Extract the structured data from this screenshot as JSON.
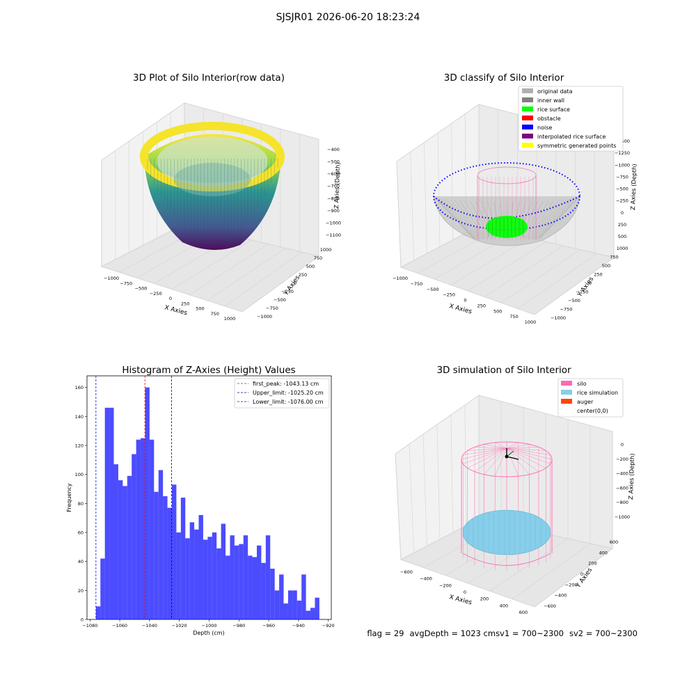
{
  "figure": {
    "suptitle": "SJSJR01 2026-06-20 18:23:24",
    "status": {
      "flag": "flag = 29",
      "avg_depth": "avgDepth = 1023 cm",
      "sv1": "sv1 = 700~2300",
      "sv2": "sv2 = 700~2300"
    }
  },
  "chart_data": [
    {
      "type": "scatter3d",
      "title": "3D Plot of Silo Interior(row data)",
      "xlabel": "X Axies",
      "ylabel": "Y Axies",
      "zlabel": "Z Axies (Depth)",
      "x_ticks": [
        "−1000",
        "−750",
        "−500",
        "−250",
        "0",
        "250",
        "500",
        "750",
        "1000"
      ],
      "y_ticks": [
        "−1000",
        "−750",
        "−500",
        "−250",
        "0",
        "250",
        "500",
        "750",
        "1000"
      ],
      "z_ticks": [
        "−1100",
        "−1000",
        "−900",
        "−800",
        "−700",
        "−600",
        "−500",
        "−400"
      ],
      "zlim": [
        -1100,
        -400
      ],
      "colormap": "viridis"
    },
    {
      "type": "scatter3d",
      "title": "3D classify of Silo Interior",
      "xlabel": "X Axies",
      "ylabel": "Y Axies",
      "zlabel": "Z Axies (Depth)",
      "x_ticks": [
        "−1000",
        "−750",
        "−500",
        "−250",
        "0",
        "250",
        "500",
        "750",
        "1000"
      ],
      "y_ticks": [
        "−1000",
        "−750",
        "−500",
        "−250",
        "0",
        "250",
        "500",
        "750",
        "1000"
      ],
      "z_ticks": [
        "−1500",
        "−1250",
        "−1000",
        "−750",
        "−500",
        "−250",
        "0",
        "250",
        "500"
      ],
      "legend": [
        {
          "label": "original data",
          "color": "#b0b0b0"
        },
        {
          "label": "inner wall",
          "color": "#808080"
        },
        {
          "label": "rice surface",
          "color": "#00ff00"
        },
        {
          "label": "obstacle",
          "color": "#ff0000"
        },
        {
          "label": "noise",
          "color": "#0000ff"
        },
        {
          "label": "interpolated rice surface",
          "color": "#800080"
        },
        {
          "label": "symmetric generated points",
          "color": "#ffff00"
        }
      ],
      "legend_position": "top-right"
    },
    {
      "type": "bar",
      "title": "Histogram of Z-Axies (Height) Values",
      "xlabel": "Depth (cm)",
      "ylabel": "Frequency",
      "xlim": [
        -1082,
        -918
      ],
      "ylim": [
        0,
        168
      ],
      "x_ticks": [
        -1080,
        -1060,
        -1040,
        -1020,
        -1000,
        -980,
        -960,
        -940,
        -920
      ],
      "x_tick_labels": [
        "−1080",
        "−1060",
        "−1040",
        "−1020",
        "−1000",
        "−980",
        "−960",
        "−940",
        "−920"
      ],
      "y_ticks": [
        0,
        20,
        40,
        60,
        80,
        100,
        120,
        140,
        160
      ],
      "bin_start": -1076.0,
      "bin_width": 3.0,
      "values": [
        9,
        42,
        146,
        146,
        107,
        96,
        92,
        99,
        114,
        124,
        125,
        160,
        124,
        88,
        103,
        85,
        77,
        93,
        60,
        84,
        56,
        67,
        62,
        72,
        55,
        57,
        60,
        49,
        66,
        44,
        58,
        51,
        52,
        58,
        44,
        43,
        51,
        39,
        58,
        35,
        20,
        31,
        11,
        20,
        20,
        13,
        31,
        6,
        8,
        15
      ],
      "bar_color": "#0000ff",
      "vlines": [
        {
          "x": -1043.13,
          "color": "#ff0000",
          "label": "first_peak: -1043.13 cm"
        },
        {
          "x": -1025.2,
          "color": "#000080",
          "label": "Upper_limit: -1025.20 cm"
        },
        {
          "x": -1076.0,
          "color": "#0000ff",
          "label": "Lower_limit: -1076.00 cm"
        }
      ],
      "legend_position": "top-right"
    },
    {
      "type": "scatter3d",
      "title": "3D simulation of Silo Interior",
      "xlabel": "X Axies",
      "ylabel": "Y Axies",
      "zlabel": "Z Axies (Depth)",
      "x_ticks": [
        "−600",
        "−400",
        "−200",
        "0",
        "200",
        "400",
        "600"
      ],
      "y_ticks": [
        "−600",
        "−400",
        "−200",
        "0",
        "200",
        "400",
        "600"
      ],
      "z_ticks": [
        "−1000",
        "−800",
        "−600",
        "−400",
        "−200",
        "0"
      ],
      "legend": [
        {
          "label": "silo",
          "color": "#ff69b4"
        },
        {
          "label": "rice simulation",
          "color": "#87ceeb"
        },
        {
          "label": "auger",
          "color": "#ff4500"
        },
        {
          "label": "center(0,0)",
          "color": ""
        }
      ],
      "legend_position": "top-right"
    }
  ]
}
